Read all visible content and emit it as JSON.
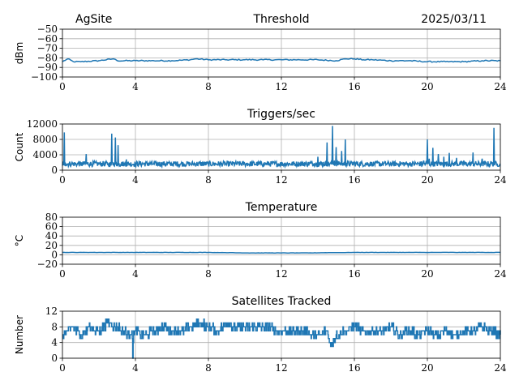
{
  "header": {
    "site": "AgSite",
    "date": "2025/03/11"
  },
  "colors": {
    "series": "#1f77b4",
    "grid": "#b0b0b0",
    "axis": "#000000"
  },
  "chart_data": [
    {
      "type": "line",
      "title": "Threshold",
      "ylabel": "dBm",
      "xlim": [
        0,
        24
      ],
      "ylim": [
        -100,
        -50
      ],
      "x_ticks": [
        "0",
        "4",
        "8",
        "12",
        "16",
        "20",
        "24"
      ],
      "y_ticks": [
        "−50",
        "−60",
        "−70",
        "−80",
        "−90",
        "−100"
      ],
      "grid": true,
      "series": [
        {
          "x": [
            0,
            0.3,
            0.6,
            1,
            2,
            2.8,
            3,
            4,
            5,
            6,
            7,
            7.3,
            8,
            9,
            10,
            11,
            12,
            13,
            14,
            15,
            15.5,
            16,
            16.5,
            17,
            18,
            19,
            20,
            21,
            22,
            23,
            24
          ],
          "y": [
            -84,
            -81,
            -84,
            -84,
            -83,
            -81,
            -83,
            -83,
            -83,
            -83,
            -82,
            -81,
            -82,
            -82,
            -82,
            -82,
            -82,
            -82,
            -82,
            -83,
            -81,
            -81,
            -82,
            -82,
            -83,
            -83,
            -84,
            -84,
            -84,
            -83,
            -83
          ]
        }
      ]
    },
    {
      "type": "line",
      "title": "Triggers/sec",
      "ylabel": "Count",
      "xlim": [
        0,
        24
      ],
      "ylim": [
        0,
        12000
      ],
      "x_ticks": [
        "0",
        "4",
        "8",
        "12",
        "16",
        "20",
        "24"
      ],
      "y_ticks": [
        "0",
        "4000",
        "8000",
        "12000"
      ],
      "grid": true,
      "baseline": 1500,
      "series": [
        {
          "x": [
            0,
            0.1,
            0.15,
            0.2,
            0.5,
            0.8,
            1,
            1.3,
            1.5,
            2,
            2.5,
            2.65,
            2.7,
            2.8,
            2.9,
            3,
            3.05,
            3.1,
            3.2,
            3.4,
            3.5,
            3.7,
            4,
            5,
            6,
            7,
            8,
            9,
            10,
            11,
            12,
            13,
            13.6,
            13.8,
            14,
            14.3,
            14.5,
            14.7,
            14.8,
            14.9,
            15,
            15.2,
            15.3,
            15.5,
            15.8,
            16,
            17,
            18,
            19,
            19.8,
            20,
            20.1,
            20.3,
            20.6,
            20.9,
            21.2,
            21.6,
            22,
            22.5,
            23,
            23.5,
            23.65,
            23.7,
            23.8,
            24
          ],
          "y": [
            1200,
            9800,
            2000,
            1500,
            1800,
            1400,
            1600,
            4200,
            1500,
            1800,
            1500,
            1200,
            9500,
            2000,
            8500,
            1500,
            6500,
            1800,
            1500,
            1500,
            2800,
            1500,
            1400,
            1600,
            1500,
            1700,
            1500,
            1400,
            1600,
            1500,
            1500,
            1700,
            2200,
            1800,
            3500,
            2000,
            7200,
            1800,
            11500,
            2500,
            6000,
            2000,
            5000,
            8000,
            1800,
            2200,
            1700,
            1500,
            1600,
            2500,
            8000,
            3000,
            5800,
            4200,
            3500,
            4500,
            3200,
            2500,
            4600,
            3000,
            2200,
            11000,
            1800,
            1200,
            1500
          ]
        }
      ]
    },
    {
      "type": "line",
      "title": "Temperature",
      "ylabel": "°C",
      "xlim": [
        0,
        24
      ],
      "ylim": [
        -20,
        80
      ],
      "x_ticks": [
        "0",
        "4",
        "8",
        "12",
        "16",
        "20",
        "24"
      ],
      "y_ticks": [
        "−20",
        "0",
        "20",
        "40",
        "60",
        "80"
      ],
      "grid": true,
      "series": [
        {
          "x": [
            0,
            4,
            8,
            10,
            12,
            13.5,
            16,
            20,
            24
          ],
          "y": [
            5,
            5,
            5,
            4,
            4,
            4,
            5,
            5,
            5
          ]
        }
      ]
    },
    {
      "type": "line",
      "title": "Satellites Tracked",
      "ylabel": "Number",
      "xlim": [
        0,
        24
      ],
      "ylim": [
        0,
        12
      ],
      "x_ticks": [
        "0",
        "4",
        "8",
        "12",
        "16",
        "20",
        "24"
      ],
      "y_ticks": [
        "0",
        "4",
        "8",
        "12"
      ],
      "grid": true,
      "series": [
        {
          "x": [
            0,
            0.3,
            0.6,
            1,
            1.5,
            2,
            2.5,
            3,
            3.3,
            3.6,
            3.8,
            3.85,
            3.9,
            4.5,
            5,
            5.5,
            6,
            6.5,
            7,
            7.5,
            8,
            8.5,
            9,
            9.5,
            10,
            11,
            12,
            13,
            14,
            14.5,
            14.7,
            15,
            15.5,
            16,
            16.5,
            17,
            17.5,
            18,
            18.5,
            19,
            19.5,
            20,
            20.5,
            21,
            21.5,
            22,
            22.5,
            23,
            23.5,
            24
          ],
          "y": [
            6,
            7,
            8,
            6,
            8,
            7,
            9,
            8,
            7,
            6,
            7,
            0,
            7,
            6,
            7,
            8,
            7,
            7,
            8,
            9,
            8,
            7,
            9,
            8,
            8,
            8,
            7,
            7,
            6,
            7,
            3,
            6,
            7,
            8,
            7,
            7,
            7,
            8,
            6,
            7,
            6,
            7,
            6,
            7,
            6,
            7,
            7,
            8,
            7,
            6
          ]
        }
      ]
    }
  ]
}
